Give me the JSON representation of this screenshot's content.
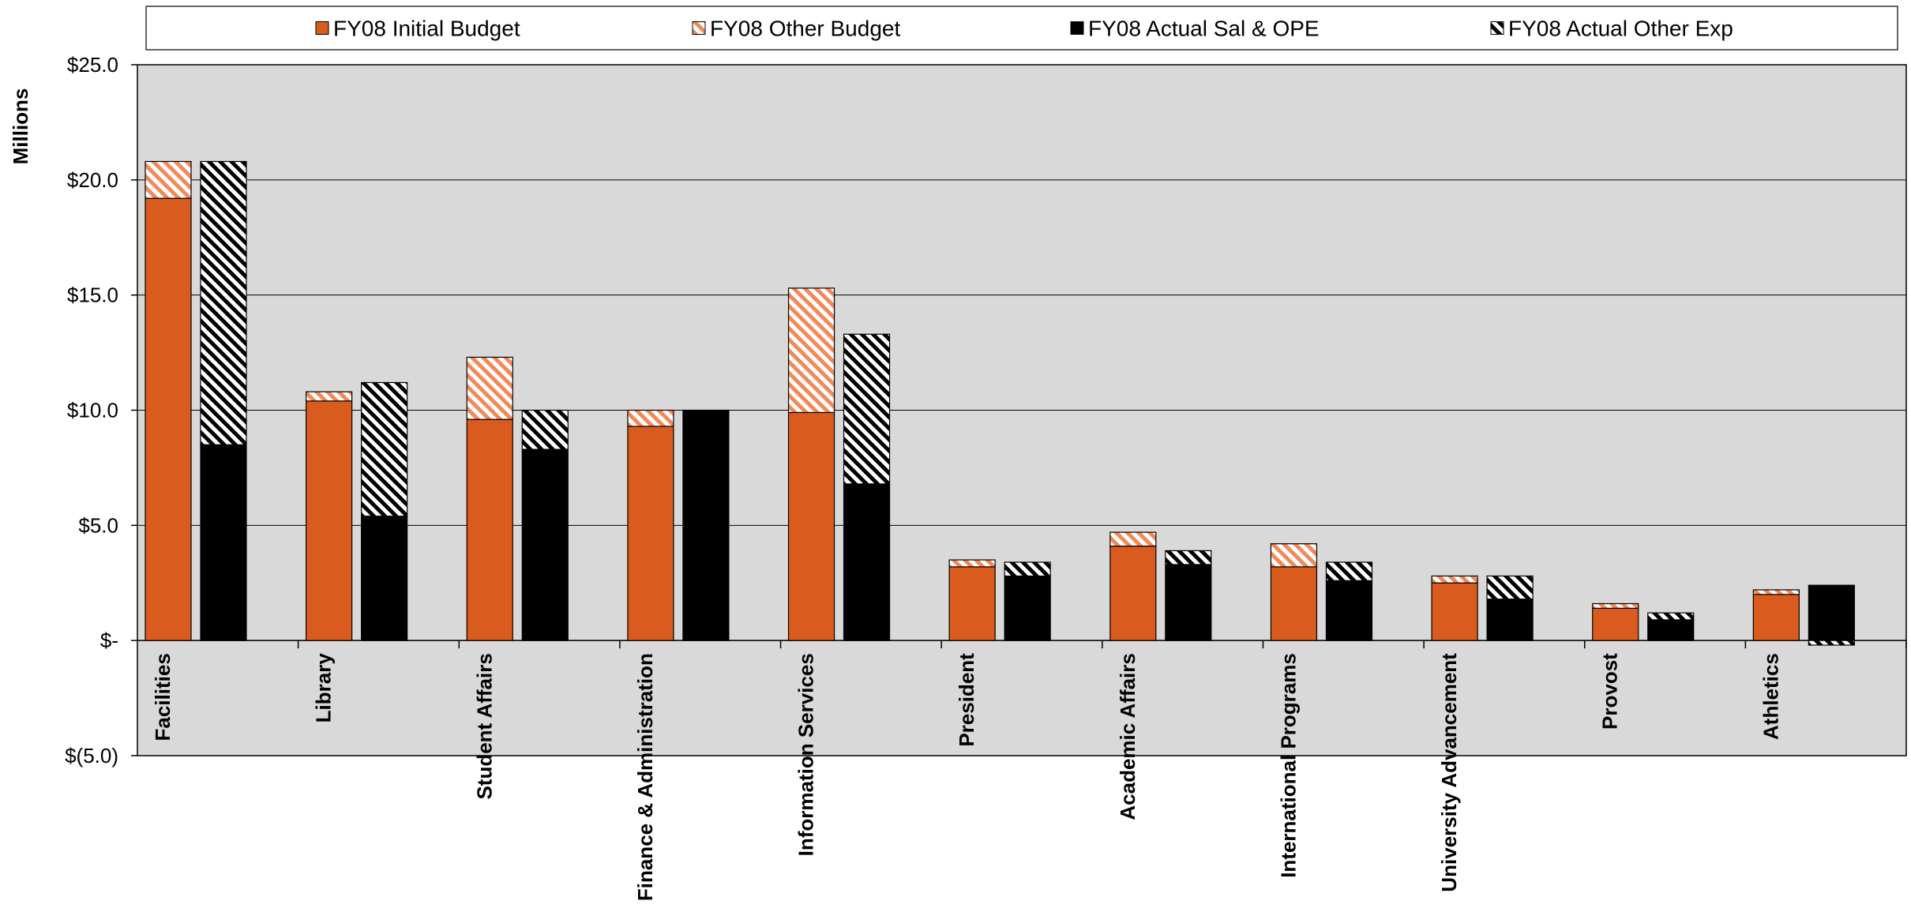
{
  "chart_data": {
    "type": "bar",
    "stacked": true,
    "grouped": true,
    "ylabel": "Millions",
    "ylim": [
      -5,
      25
    ],
    "yticks": [
      25,
      20,
      15,
      10,
      5,
      0,
      -5
    ],
    "ytick_labels": [
      "$25.0",
      "$20.0",
      "$15.0",
      "$10.0",
      "$5.0",
      "$-",
      "$(5.0)"
    ],
    "grid": true,
    "legend_position": "top",
    "categories": [
      "Facilities",
      "Library",
      "Student Affairs",
      "Finance & Administration",
      "Information Services",
      "President",
      "Academic  Affairs",
      "International Programs",
      "University Advancement",
      "Provost",
      "Athletics"
    ],
    "series": [
      {
        "name": "FY08 Initial Budget",
        "stack": "budget",
        "color": "#D95B1D",
        "pattern": "solid",
        "values": [
          19.2,
          10.4,
          9.6,
          9.3,
          9.9,
          3.2,
          4.1,
          3.2,
          2.5,
          1.4,
          2.0
        ]
      },
      {
        "name": "FY08 Other Budget",
        "stack": "budget",
        "color": "#F08A5A",
        "pattern": "hatch",
        "values": [
          1.6,
          0.4,
          2.7,
          0.7,
          5.4,
          0.3,
          0.6,
          1.0,
          0.3,
          0.2,
          0.2
        ]
      },
      {
        "name": "FY08 Actual Sal & OPE",
        "stack": "actual",
        "color": "#000000",
        "pattern": "solid",
        "values": [
          8.5,
          5.4,
          8.3,
          10.0,
          6.8,
          2.8,
          3.3,
          2.6,
          1.8,
          0.9,
          2.4
        ]
      },
      {
        "name": "FY08 Actual Other Exp",
        "stack": "actual",
        "color": "#000000",
        "pattern": "hatch",
        "values": [
          12.3,
          5.8,
          1.7,
          0.0,
          6.5,
          0.6,
          0.6,
          0.8,
          1.0,
          0.3,
          -0.2
        ]
      }
    ]
  }
}
